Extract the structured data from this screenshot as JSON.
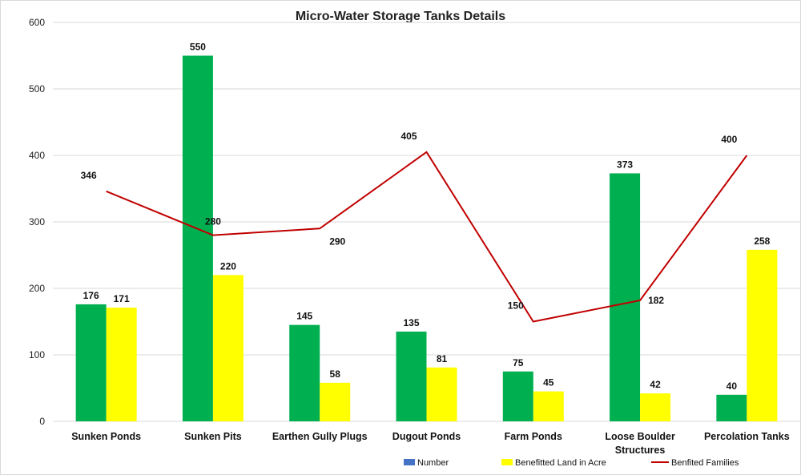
{
  "chart_data": {
    "type": "bar",
    "title": "Micro-Water Storage Tanks Details",
    "categories": [
      "Sunken Ponds",
      "Sunken Pits",
      "Earthen Gully Plugs",
      "Dugout Ponds",
      "Farm Ponds",
      "Loose Boulder Structures",
      "Percolation Tanks"
    ],
    "category_lines": [
      [
        "Sunken Ponds"
      ],
      [
        "Sunken Pits"
      ],
      [
        "Earthen Gully Plugs"
      ],
      [
        "Dugout Ponds"
      ],
      [
        "Farm Ponds"
      ],
      [
        "Loose Boulder",
        "Structures"
      ],
      [
        "Percolation Tanks"
      ]
    ],
    "series": [
      {
        "name": "Number",
        "type": "bar",
        "color": "#00b050",
        "legend_color": "#4472c4",
        "values": [
          176,
          550,
          145,
          135,
          75,
          373,
          40
        ]
      },
      {
        "name": "Benefitted Land in Acre",
        "type": "bar",
        "color": "#ffff00",
        "values": [
          171,
          220,
          58,
          81,
          45,
          42,
          258
        ]
      },
      {
        "name": "Benfited Families",
        "type": "line",
        "color": "#c00000",
        "values": [
          346,
          280,
          290,
          405,
          150,
          182,
          400
        ]
      }
    ],
    "ylim": [
      0,
      600
    ],
    "yticks": [
      0,
      100,
      200,
      300,
      400,
      500,
      600
    ],
    "xlabel": "",
    "ylabel": "",
    "grid": true,
    "legend_position": "bottom"
  }
}
